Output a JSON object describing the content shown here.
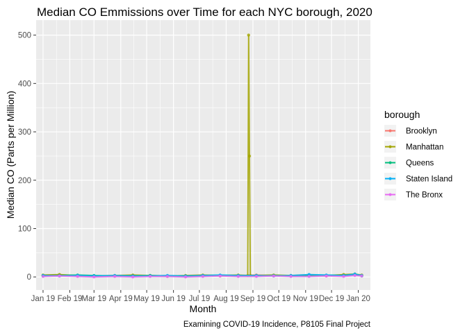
{
  "chart_data": {
    "type": "line",
    "title": "Median CO Emmissions over Time for each NYC borough, 2020",
    "xlabel": "Month",
    "ylabel": "Median CO (Parts per Million)",
    "caption": "Examining COVID-19 Incidence, P8105 Final Project",
    "legend_title": "borough",
    "legend_position": "right",
    "grid": true,
    "x_range": [
      "2019-01-01",
      "2020-01-05"
    ],
    "ylim": [
      0,
      500
    ],
    "y_ticks": [
      0,
      100,
      200,
      300,
      400,
      500
    ],
    "x_ticks": [
      {
        "date": "2019-01-01",
        "label": "Jan 19"
      },
      {
        "date": "2019-02-01",
        "label": "Feb 19"
      },
      {
        "date": "2019-03-01",
        "label": "Mar 19"
      },
      {
        "date": "2019-04-01",
        "label": "Apr 19"
      },
      {
        "date": "2019-05-01",
        "label": "May 19"
      },
      {
        "date": "2019-06-01",
        "label": "Jun 19"
      },
      {
        "date": "2019-07-01",
        "label": "Jul 19"
      },
      {
        "date": "2019-08-01",
        "label": "Aug 19"
      },
      {
        "date": "2019-09-01",
        "label": "Sep 19"
      },
      {
        "date": "2019-10-01",
        "label": "Oct 19"
      },
      {
        "date": "2019-11-01",
        "label": "Nov 19"
      },
      {
        "date": "2019-12-01",
        "label": "Dec 19"
      },
      {
        "date": "2020-01-01",
        "label": "Jan 20"
      }
    ],
    "series": [
      {
        "name": "Brooklyn",
        "color": "#F8766D",
        "x": [
          "2019-01-01",
          "2019-01-20",
          "2019-02-10",
          "2019-03-01",
          "2019-03-25",
          "2019-04-15",
          "2019-05-05",
          "2019-05-25",
          "2019-06-15",
          "2019-07-05",
          "2019-07-25",
          "2019-08-15",
          "2019-09-05",
          "2019-09-25",
          "2019-10-15",
          "2019-11-05",
          "2019-11-25",
          "2019-12-15",
          "2019-12-28",
          "2020-01-05"
        ],
        "y": [
          3,
          4,
          2,
          1,
          2,
          3,
          2,
          1,
          2,
          3,
          2,
          3,
          4,
          3,
          2,
          3,
          2,
          4,
          5,
          3
        ]
      },
      {
        "name": "Manhattan",
        "color": "#A3A500",
        "x": [
          "2019-01-01",
          "2019-01-20",
          "2019-02-10",
          "2019-03-01",
          "2019-03-25",
          "2019-04-15",
          "2019-05-05",
          "2019-05-25",
          "2019-06-15",
          "2019-07-05",
          "2019-07-25",
          "2019-08-15",
          "2019-08-26",
          "2019-08-27",
          "2019-08-28",
          "2019-08-29",
          "2019-09-05",
          "2019-09-25",
          "2019-10-15",
          "2019-11-05",
          "2019-11-25",
          "2019-12-15",
          "2019-12-28",
          "2020-01-05"
        ],
        "y": [
          4,
          5,
          3,
          2,
          3,
          4,
          3,
          2,
          3,
          4,
          3,
          4,
          3,
          500,
          250,
          3,
          3,
          4,
          3,
          4,
          3,
          5,
          6,
          4
        ]
      },
      {
        "name": "Queens",
        "color": "#00BF7D",
        "x": [
          "2019-01-01",
          "2019-01-20",
          "2019-02-10",
          "2019-03-01",
          "2019-03-25",
          "2019-04-15",
          "2019-05-05",
          "2019-05-25",
          "2019-06-15",
          "2019-07-05",
          "2019-07-25",
          "2019-08-15",
          "2019-09-05",
          "2019-09-25",
          "2019-10-15",
          "2019-11-05",
          "2019-11-25",
          "2019-12-15",
          "2019-12-28",
          "2020-01-05"
        ],
        "y": [
          2,
          3,
          4,
          3,
          2,
          2,
          3,
          2,
          1,
          2,
          3,
          2,
          2,
          3,
          2,
          2,
          3,
          3,
          4,
          2
        ]
      },
      {
        "name": "Staten Island",
        "color": "#00B0F6",
        "x": [
          "2019-01-01",
          "2019-01-20",
          "2019-02-10",
          "2019-03-01",
          "2019-03-25",
          "2019-04-15",
          "2019-05-05",
          "2019-05-25",
          "2019-06-15",
          "2019-07-05",
          "2019-07-25",
          "2019-08-15",
          "2019-09-05",
          "2019-09-25",
          "2019-10-15",
          "2019-11-05",
          "2019-11-25",
          "2019-12-15",
          "2019-12-28",
          "2020-01-05"
        ],
        "y": [
          3,
          2,
          3,
          2,
          3,
          2,
          2,
          3,
          2,
          3,
          4,
          3,
          3,
          2,
          3,
          5,
          4,
          3,
          6,
          3
        ]
      },
      {
        "name": "The Bronx",
        "color": "#E76BF3",
        "x": [
          "2019-01-01",
          "2019-01-20",
          "2019-02-10",
          "2019-03-01",
          "2019-03-25",
          "2019-04-15",
          "2019-05-05",
          "2019-05-25",
          "2019-06-15",
          "2019-07-05",
          "2019-07-25",
          "2019-08-15",
          "2019-09-05",
          "2019-09-25",
          "2019-10-15",
          "2019-11-05",
          "2019-11-25",
          "2019-12-15",
          "2019-12-28",
          "2020-01-05"
        ],
        "y": [
          1,
          2,
          1,
          0,
          1,
          0,
          1,
          1,
          0,
          1,
          2,
          1,
          1,
          2,
          1,
          1,
          2,
          1,
          3,
          2
        ]
      }
    ]
  }
}
